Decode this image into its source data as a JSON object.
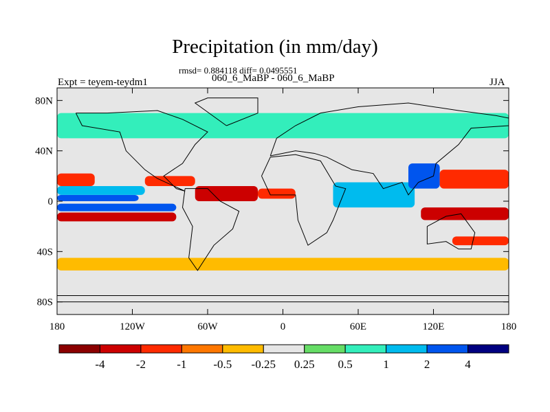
{
  "title": "Precipitation (in mm/day)",
  "stats_line": "rmsd= 0.884118 diff= 0.0495551",
  "runs_line": "060_6_MaBP - 060_6_MaBP",
  "left_label": "Expt = teyem-teydm1",
  "right_label": "JJA",
  "chart_data": {
    "type": "heatmap",
    "title": "Precipitation (in mm/day)",
    "subtitle": "060_6_MaBP - 060_6_MaBP",
    "x_ticks": [
      "180",
      "120W",
      "60W",
      "0",
      "60E",
      "120E",
      "180"
    ],
    "x_tick_values": [
      -180,
      -120,
      -60,
      0,
      60,
      120,
      180
    ],
    "y_ticks": [
      "80N",
      "40N",
      "0",
      "40S",
      "80S"
    ],
    "y_tick_values": [
      80,
      40,
      0,
      -40,
      -80
    ],
    "xlim": [
      -180,
      180
    ],
    "ylim": [
      -90,
      90
    ],
    "colorbar": {
      "boundaries": [
        -4,
        -2,
        -1,
        -0.5,
        -0.25,
        0.25,
        0.5,
        1,
        2,
        4
      ],
      "labels": [
        "-4",
        "-2",
        "-1",
        "-0.5",
        "-0.25",
        "0.25",
        "0.5",
        "1",
        "2",
        "4"
      ],
      "colors": [
        "#8b0000",
        "#cc0000",
        "#ff2a00",
        "#ff7700",
        "#ffbb00",
        "#e6e6e6",
        "#66dd66",
        "#33eebb",
        "#00bbee",
        "#0055ee",
        "#000080"
      ]
    },
    "field_regions": [
      {
        "lon": [
          -180,
          -115
        ],
        "lat": [
          0,
          5
        ],
        "value": 3
      },
      {
        "lon": [
          -180,
          -110
        ],
        "lat": [
          5,
          12
        ],
        "value": 1.5
      },
      {
        "lon": [
          -180,
          -85
        ],
        "lat": [
          -8,
          -2
        ],
        "value": 2.5
      },
      {
        "lon": [
          -180,
          -150
        ],
        "lat": [
          12,
          22
        ],
        "value": -1.5
      },
      {
        "lon": [
          -180,
          -85
        ],
        "lat": [
          -16,
          -9
        ],
        "value": -3
      },
      {
        "lon": [
          -110,
          -70
        ],
        "lat": [
          12,
          20
        ],
        "value": -2
      },
      {
        "lon": [
          -70,
          -20
        ],
        "lat": [
          0,
          12
        ],
        "value": -3
      },
      {
        "lon": [
          -20,
          10
        ],
        "lat": [
          2,
          10
        ],
        "value": -1.5
      },
      {
        "lon": [
          40,
          105
        ],
        "lat": [
          -5,
          15
        ],
        "value": 1.5
      },
      {
        "lon": [
          100,
          125
        ],
        "lat": [
          10,
          30
        ],
        "value": 2.5
      },
      {
        "lon": [
          125,
          180
        ],
        "lat": [
          10,
          25
        ],
        "value": -2
      },
      {
        "lon": [
          110,
          180
        ],
        "lat": [
          -15,
          -5
        ],
        "value": -4
      },
      {
        "lon": [
          135,
          180
        ],
        "lat": [
          -35,
          -28
        ],
        "value": -2
      },
      {
        "lon": [
          -180,
          180
        ],
        "lat": [
          50,
          70
        ],
        "value": 0.5
      },
      {
        "lon": [
          -180,
          180
        ],
        "lat": [
          -55,
          -45
        ],
        "value": -0.5
      }
    ]
  }
}
